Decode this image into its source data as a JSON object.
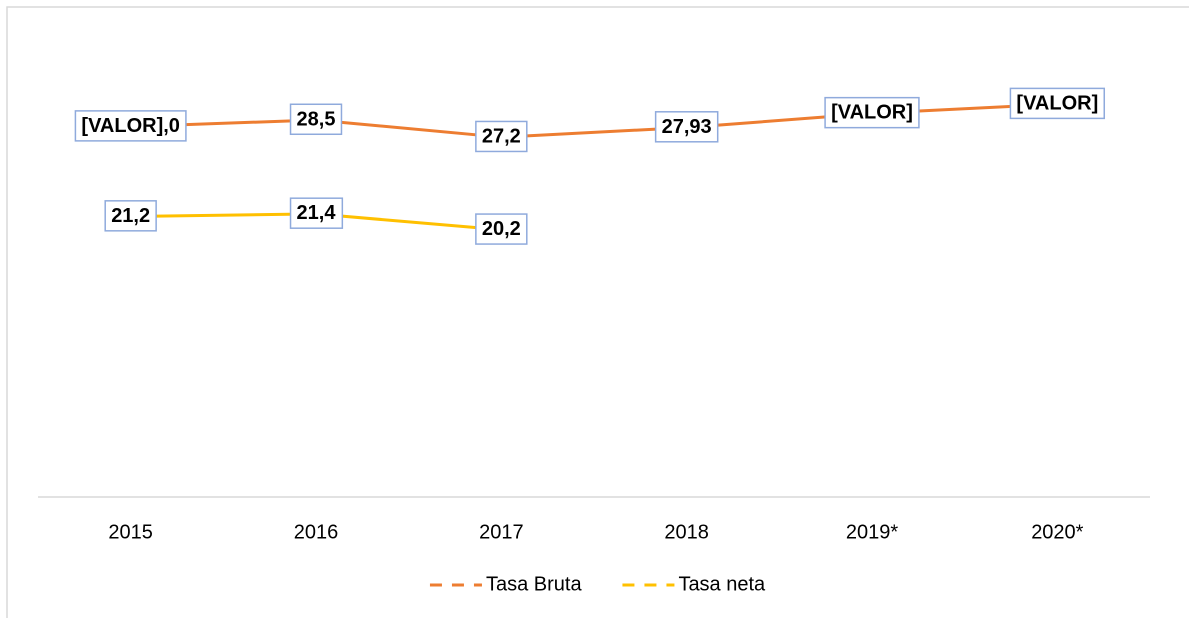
{
  "chart_data": {
    "type": "line",
    "categories": [
      "2015",
      "2016",
      "2017",
      "2018",
      "2019*",
      "2020*"
    ],
    "series": [
      {
        "name": "Tasa Bruta",
        "color": "#ed7d31",
        "values": [
          28.0,
          28.5,
          27.2,
          27.93,
          29.0,
          29.7
        ],
        "value_labels": [
          "[VALOR],0",
          "28,5",
          "27,2",
          "27,93",
          "[VALOR]",
          "[VALOR]"
        ]
      },
      {
        "name": "Tasa neta",
        "color": "#ffc000",
        "values": [
          21.2,
          21.4,
          20.2,
          null,
          null,
          null
        ],
        "value_labels": [
          "21,2",
          "21,4",
          "20,2",
          null,
          null,
          null
        ]
      }
    ],
    "ylim": [
      0,
      35
    ],
    "legend": "bottom"
  }
}
